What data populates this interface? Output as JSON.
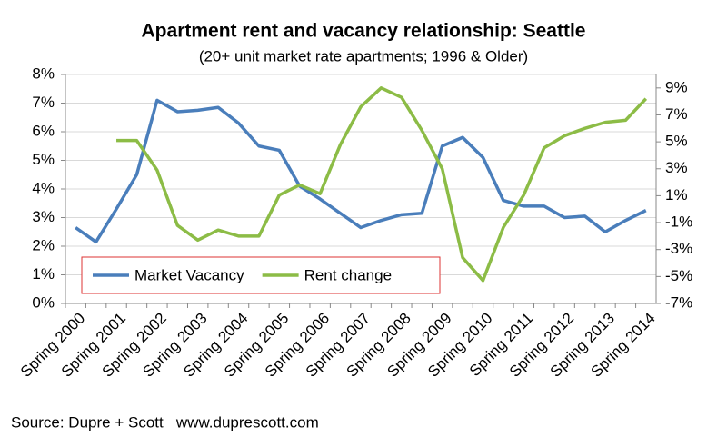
{
  "chart_data": {
    "type": "line",
    "title": "Apartment rent and vacancy relationship: Seattle",
    "subtitle": "(20+ unit market rate apartments; 1996 & Older)",
    "source": "Source: Dupre + Scott   www.duprescott.com",
    "categories": [
      "Spring 2000",
      null,
      "Spring 2001",
      null,
      "Spring 2002",
      null,
      "Spring 2003",
      null,
      "Spring 2004",
      null,
      "Spring 2005",
      null,
      "Spring 2006",
      null,
      "Spring 2007",
      null,
      "Spring 2008",
      null,
      "Spring 2009",
      null,
      "Spring 2010",
      null,
      "Spring 2011",
      null,
      "Spring 2012",
      null,
      "Spring 2013",
      null,
      "Spring 2014"
    ],
    "series": [
      {
        "name": "Market Vacancy",
        "color": "#4a7ebb",
        "values": [
          2.65,
          2.15,
          3.3,
          4.5,
          7.1,
          6.7,
          6.75,
          6.85,
          6.3,
          5.5,
          5.35,
          4.1,
          3.65,
          3.15,
          2.65,
          2.9,
          3.1,
          3.15,
          5.5,
          5.8,
          5.1,
          3.6,
          3.4,
          3.4,
          3.0,
          3.05,
          2.5,
          2.9,
          3.25
        ]
      },
      {
        "name": "Rent change",
        "color": "#8cbc46",
        "axis": "y2",
        "values": [
          null,
          null,
          5.1,
          5.1,
          2.9,
          -1.2,
          -2.3,
          -1.55,
          -2.0,
          -2.0,
          1.05,
          1.8,
          1.15,
          4.8,
          7.6,
          9.0,
          8.3,
          5.85,
          3.0,
          -3.6,
          -5.3,
          -1.35,
          1.05,
          4.55,
          5.45,
          6.0,
          6.45,
          6.6,
          8.2
        ]
      }
    ],
    "ylim": [
      0,
      8
    ],
    "yticks": [
      {
        "value": 0,
        "label": "0%"
      },
      {
        "value": 1,
        "label": "1%"
      },
      {
        "value": 2,
        "label": "2%"
      },
      {
        "value": 3,
        "label": "3%"
      },
      {
        "value": 4,
        "label": "4%"
      },
      {
        "value": 5,
        "label": "5%"
      },
      {
        "value": 6,
        "label": "6%"
      },
      {
        "value": 7,
        "label": "7%"
      },
      {
        "value": 8,
        "label": "8%"
      }
    ],
    "y2lim": [
      -7,
      10
    ],
    "y2ticks": [
      {
        "value": -7,
        "label": "-7%"
      },
      {
        "value": -5,
        "label": "-5%"
      },
      {
        "value": -3,
        "label": "-3%"
      },
      {
        "value": -1,
        "label": "-1%"
      },
      {
        "value": 1,
        "label": "1%"
      },
      {
        "value": 3,
        "label": "3%"
      },
      {
        "value": 5,
        "label": "5%"
      },
      {
        "value": 7,
        "label": "7%"
      },
      {
        "value": 9,
        "label": "9%"
      }
    ],
    "grid": true
  }
}
